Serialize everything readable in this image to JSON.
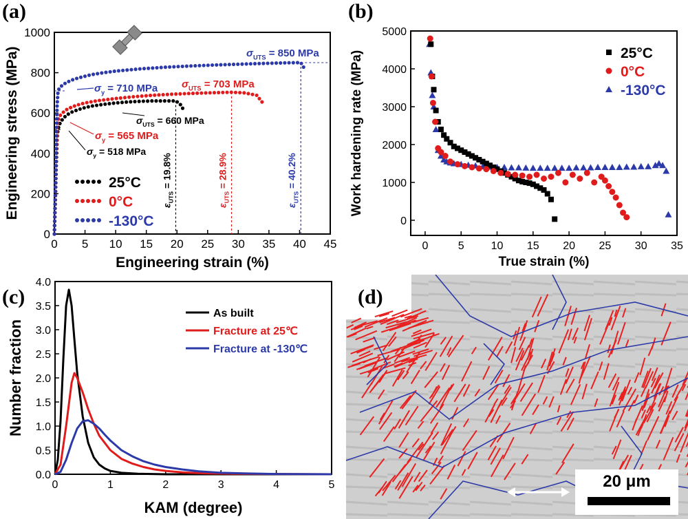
{
  "panels": {
    "a": {
      "label": "(a)"
    },
    "b": {
      "label": "(b)"
    },
    "c": {
      "label": "(c)"
    },
    "d": {
      "label": "(d)"
    }
  },
  "chart_data": [
    {
      "id": "a",
      "type": "line",
      "xlabel": "Engineering strain (%)",
      "ylabel": "Engineering stress (MPa)",
      "xlim": [
        0,
        45
      ],
      "ylim": [
        0,
        1000
      ],
      "xticks": [
        "0",
        "5",
        "10",
        "15",
        "20",
        "25",
        "30",
        "35",
        "40",
        "45"
      ],
      "yticks": [
        "0",
        "200",
        "400",
        "600",
        "800",
        "1000"
      ],
      "legend_position": "bottom-left",
      "series": [
        {
          "name": "25°C",
          "color": "#000000",
          "x": [
            0,
            0.15,
            0.3,
            0.45,
            0.6,
            0.8,
            1,
            1.5,
            2,
            3,
            4,
            5,
            6,
            8,
            10,
            12,
            14,
            16,
            18,
            19.8,
            20.5,
            21
          ],
          "y": [
            0,
            150,
            330,
            480,
            518,
            540,
            555,
            575,
            590,
            607,
            618,
            627,
            634,
            643,
            650,
            655,
            658,
            660,
            660,
            660,
            645,
            620
          ]
        },
        {
          "name": "0°C",
          "color": "#e01b1b",
          "x": [
            0,
            0.15,
            0.3,
            0.45,
            0.6,
            0.8,
            1,
            1.5,
            2,
            3,
            4,
            5,
            7,
            10,
            13,
            16,
            19,
            22,
            25,
            28.9,
            31,
            33,
            34
          ],
          "y": [
            0,
            170,
            380,
            530,
            565,
            580,
            590,
            605,
            617,
            632,
            642,
            650,
            661,
            672,
            681,
            688,
            693,
            697,
            700,
            703,
            700,
            688,
            650
          ]
        },
        {
          "name": "-130°C",
          "color": "#2b3aa8",
          "x": [
            0,
            0.15,
            0.3,
            0.45,
            0.6,
            0.8,
            1,
            1.5,
            2,
            3,
            4,
            6,
            8,
            10,
            14,
            18,
            22,
            26,
            30,
            34,
            38,
            40.2,
            41
          ],
          "y": [
            0,
            200,
            450,
            640,
            710,
            722,
            730,
            742,
            752,
            765,
            775,
            790,
            800,
            808,
            819,
            827,
            833,
            838,
            842,
            846,
            849,
            850,
            810
          ]
        }
      ],
      "annotations": [
        {
          "text": "σ_UTS = 850 MPa",
          "color": "#2b3aa8"
        },
        {
          "text": "σ_y = 710 MPa",
          "color": "#2b3aa8"
        },
        {
          "text": "σ_UTS = 703 MPa",
          "color": "#e01b1b"
        },
        {
          "text": "σ_UTS = 660 MPa",
          "color": "#000000"
        },
        {
          "text": "σ_y = 565 MPa",
          "color": "#e01b1b"
        },
        {
          "text": "σ_y = 518 MPa",
          "color": "#000000"
        },
        {
          "text": "ε_UTS = 19.8%",
          "color": "#000000",
          "x": 19.8
        },
        {
          "text": "ε_UTS = 28.9%",
          "color": "#e01b1b",
          "x": 28.9
        },
        {
          "text": "ε_UTS = 40.2%",
          "color": "#2b3aa8",
          "x": 40.2
        }
      ]
    },
    {
      "id": "b",
      "type": "scatter",
      "xlabel": "True strain (%)",
      "ylabel": "Work hardening rate (MPa)",
      "xlim": [
        -2,
        35
      ],
      "ylim": [
        -400,
        5000
      ],
      "xticks": [
        "0",
        "5",
        "10",
        "15",
        "20",
        "25",
        "30",
        "35"
      ],
      "yticks": [
        "0",
        "1000",
        "2000",
        "3000",
        "4000",
        "5000"
      ],
      "legend_position": "top-right",
      "series": [
        {
          "name": "25°C",
          "color": "#000000",
          "marker": "square",
          "x": [
            0.8,
            1.0,
            1.2,
            1.5,
            1.8,
            2.2,
            2.6,
            3,
            3.5,
            4,
            4.5,
            5,
            5.5,
            6,
            6.5,
            7,
            7.5,
            8,
            8.5,
            9,
            9.5,
            10,
            10.5,
            11,
            11.5,
            12,
            12.5,
            13,
            13.5,
            14,
            14.5,
            15,
            15.5,
            16,
            16.5,
            17,
            17.5,
            18
          ],
          "y": [
            4650,
            3800,
            3450,
            2900,
            2600,
            2400,
            2250,
            2150,
            2050,
            1950,
            1900,
            1850,
            1800,
            1750,
            1700,
            1650,
            1600,
            1550,
            1500,
            1450,
            1400,
            1350,
            1300,
            1250,
            1200,
            1150,
            1100,
            1050,
            1020,
            1000,
            980,
            950,
            900,
            850,
            800,
            700,
            550,
            30
          ]
        },
        {
          "name": "0°C",
          "color": "#e01b1b",
          "marker": "circle",
          "x": [
            0.7,
            0.9,
            1.1,
            1.4,
            1.8,
            2.2,
            2.8,
            3.5,
            4.5,
            5.5,
            6.5,
            7.5,
            8.5,
            9.5,
            10.5,
            11.5,
            12.5,
            13.5,
            14.5,
            15.5,
            16.5,
            17.5,
            18.5,
            19.5,
            20.5,
            21.5,
            22.5,
            23.5,
            24.5,
            25,
            25.5,
            26,
            26.5,
            27,
            27.5,
            28
          ],
          "y": [
            4800,
            3800,
            3100,
            2600,
            1900,
            1800,
            1700,
            1550,
            1480,
            1430,
            1400,
            1370,
            1350,
            1300,
            1250,
            1220,
            1200,
            1180,
            1150,
            1200,
            1100,
            1150,
            1250,
            1000,
            1200,
            1100,
            1250,
            1000,
            1150,
            1050,
            900,
            750,
            600,
            400,
            200,
            80
          ]
        },
        {
          "name": "-130°C",
          "color": "#2b3aa8",
          "marker": "triangle",
          "x": [
            0.6,
            0.8,
            1.0,
            1.2,
            1.5,
            1.8,
            2.2,
            2.6,
            3,
            3.5,
            4,
            5,
            6,
            7,
            8,
            9,
            10,
            11,
            12,
            13,
            14,
            15,
            16,
            17,
            18,
            19,
            20,
            21,
            22,
            23,
            24,
            25,
            26,
            27,
            28,
            29,
            30,
            31,
            32,
            32.5,
            33,
            33.5,
            33.8
          ],
          "y": [
            4650,
            3900,
            3300,
            3000,
            2400,
            1850,
            1700,
            1600,
            1550,
            1520,
            1500,
            1480,
            1460,
            1440,
            1420,
            1410,
            1400,
            1400,
            1390,
            1390,
            1385,
            1380,
            1380,
            1380,
            1380,
            1380,
            1380,
            1390,
            1390,
            1390,
            1400,
            1400,
            1400,
            1400,
            1410,
            1410,
            1420,
            1420,
            1450,
            1500,
            1450,
            1300,
            150
          ]
        }
      ]
    },
    {
      "id": "c",
      "type": "line",
      "xlabel": "KAM (degree)",
      "ylabel": "Number fraction",
      "xlim": [
        0,
        5
      ],
      "ylim": [
        0,
        4.0
      ],
      "xticks": [
        "0",
        "1",
        "2",
        "3",
        "4",
        "5"
      ],
      "yticks": [
        "0.0",
        "0.5",
        "1.0",
        "1.5",
        "2.0",
        "2.5",
        "3.0",
        "3.5",
        "4.0"
      ],
      "legend_position": "top-right",
      "series": [
        {
          "name": "As built",
          "color": "#000000",
          "x": [
            0,
            0.05,
            0.1,
            0.15,
            0.2,
            0.25,
            0.3,
            0.35,
            0.4,
            0.5,
            0.6,
            0.7,
            0.8,
            0.9,
            1.0,
            1.2,
            1.5,
            2,
            5
          ],
          "y": [
            0,
            0.3,
            1.1,
            2.4,
            3.5,
            3.83,
            3.5,
            2.8,
            2.1,
            1.2,
            0.65,
            0.35,
            0.2,
            0.12,
            0.07,
            0.03,
            0.01,
            0,
            0
          ]
        },
        {
          "name": "Fracture at 25℃",
          "color": "#e01b1b",
          "x": [
            0,
            0.1,
            0.2,
            0.3,
            0.35,
            0.4,
            0.5,
            0.6,
            0.7,
            0.8,
            1.0,
            1.2,
            1.4,
            1.6,
            1.8,
            2.0,
            2.3,
            2.7,
            3.2,
            5
          ],
          "y": [
            0,
            0.2,
            1.0,
            1.9,
            2.1,
            2.0,
            1.7,
            1.35,
            1.05,
            0.8,
            0.5,
            0.32,
            0.22,
            0.15,
            0.1,
            0.07,
            0.04,
            0.02,
            0.01,
            0
          ]
        },
        {
          "name": "Fracture at -130℃",
          "color": "#2b3aa8",
          "x": [
            0,
            0.1,
            0.2,
            0.3,
            0.4,
            0.5,
            0.6,
            0.7,
            0.8,
            0.9,
            1.0,
            1.2,
            1.4,
            1.6,
            1.8,
            2.0,
            2.3,
            2.6,
            3.0,
            3.5,
            4.0,
            5
          ],
          "y": [
            0,
            0.05,
            0.3,
            0.65,
            0.95,
            1.1,
            1.12,
            1.05,
            0.95,
            0.82,
            0.7,
            0.5,
            0.37,
            0.27,
            0.2,
            0.15,
            0.1,
            0.06,
            0.03,
            0.015,
            0.005,
            0
          ]
        }
      ]
    }
  ],
  "scalebar": {
    "text": "20 μm"
  }
}
